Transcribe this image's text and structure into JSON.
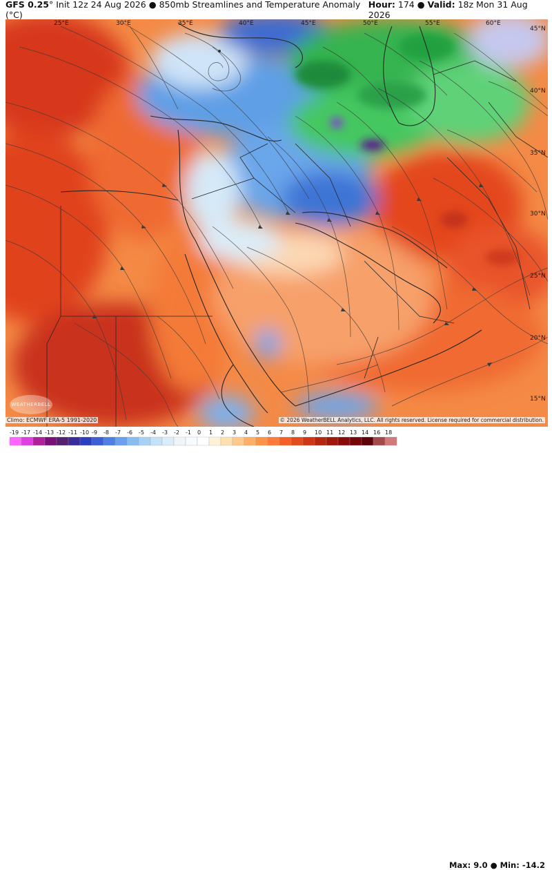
{
  "header": {
    "model": "GFS 0.25",
    "init": "° Init 12z 24 Aug 2026",
    "sep": "●",
    "product": "850mb Streamlines and Temperature Anomaly (°C)",
    "hour_label": "Hour:",
    "hour_value": "174",
    "valid_label": "Valid:",
    "valid_value": "18z Mon 31 Aug 2026"
  },
  "map": {
    "lon_labels": [
      "25°E",
      "30°E",
      "35°E",
      "40°E",
      "45°E",
      "50°E",
      "55°E",
      "60°E"
    ],
    "lat_labels": [
      "45°N",
      "40°N",
      "35°N",
      "30°N",
      "25°N",
      "20°N",
      "15°N"
    ],
    "logo_text": "WEATHERBELL"
  },
  "footer": {
    "climo": "Climo: ECMWF ERA-5 1991-2020",
    "copyright": "© 2026 WeatherBELL Analytics, LLC. All rights reserved. License required for commercial distribution.",
    "max_label": "Max:",
    "max_value": "9.0",
    "min_label": "Min:",
    "min_value": "-14.2"
  },
  "colorbar": {
    "labels": [
      "-19",
      "-17",
      "-14",
      "-13",
      "-12",
      "-11",
      "-10",
      "-9",
      "-8",
      "-7",
      "-6",
      "-5",
      "-4",
      "-3",
      "-2",
      "-1",
      "0",
      "1",
      "2",
      "3",
      "4",
      "5",
      "6",
      "7",
      "8",
      "9",
      "10",
      "11",
      "12",
      "13",
      "14",
      "16",
      "18"
    ],
    "colors": [
      "#ff66ff",
      "#e040e0",
      "#b0209a",
      "#7a0f7a",
      "#55206e",
      "#3a2c9a",
      "#2d3fbf",
      "#3b5fd6",
      "#4f7fe6",
      "#6aa0ee",
      "#89bdf2",
      "#a8d2f5",
      "#c5e2f7",
      "#dcecf8",
      "#eef5fb",
      "#f8fbfd",
      "#ffffff",
      "#fff2d8",
      "#ffe0b0",
      "#ffc98a",
      "#ffb066",
      "#ff9449",
      "#ff7a36",
      "#f66026",
      "#e54a1c",
      "#cf3614",
      "#b8250f",
      "#a0170c",
      "#8a0c0a",
      "#74070a",
      "#5e0309",
      "#a54a4a",
      "#d27a7a"
    ]
  },
  "colors": {
    "ocean": "#f2a37a",
    "hot": "#e24a22",
    "warm": "#f47e3c",
    "cool_blue": "#5b9ee8",
    "deep_blue": "#2c63cc",
    "green": "#3fbf55",
    "dark_green": "#1e8a3a",
    "border": "#2a2a2a"
  }
}
